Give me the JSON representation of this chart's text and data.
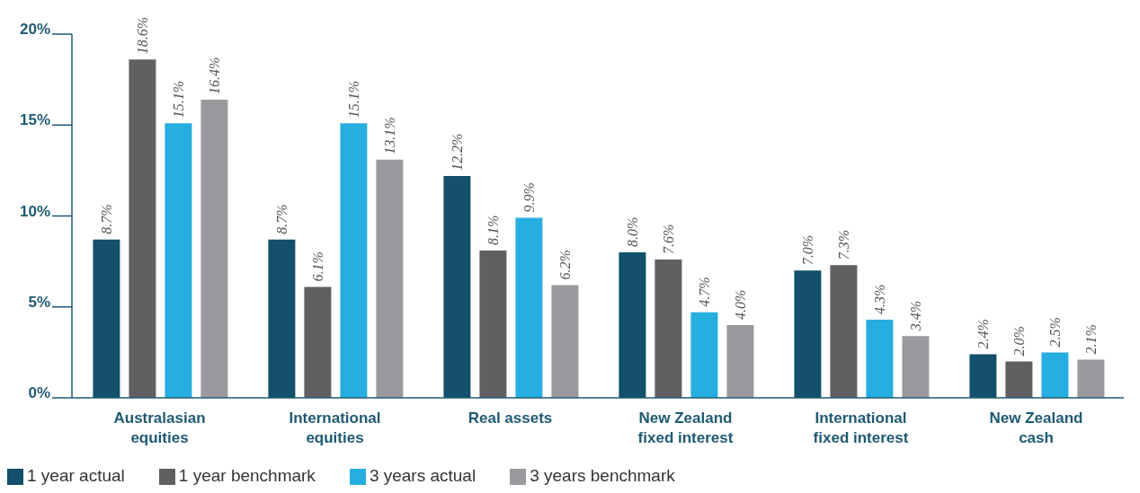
{
  "chart_data": {
    "type": "bar",
    "categories": [
      "Australasian equities",
      "International equities",
      "Real assets",
      "New Zealand fixed interest",
      "International fixed interest",
      "New Zealand cash"
    ],
    "series": [
      {
        "name": "1 year actual",
        "color": "#12506b",
        "values": [
          8.7,
          8.7,
          12.2,
          8.0,
          7.0,
          2.4
        ],
        "value_labels": [
          "8.7%",
          "8.7%",
          "12.2%",
          "8.0%",
          "7.0%",
          "2.4%"
        ]
      },
      {
        "name": "1 year benchmark",
        "color": "#606062",
        "values": [
          18.6,
          6.1,
          8.1,
          7.6,
          7.3,
          2.0
        ],
        "value_labels": [
          "18.6%",
          "6.1%",
          "8.1%",
          "7.6%",
          "7.3%",
          "2.0%"
        ]
      },
      {
        "name": "3 years actual",
        "color": "#27aee0",
        "values": [
          15.1,
          15.1,
          9.9,
          4.7,
          4.3,
          2.5
        ],
        "value_labels": [
          "15.1%",
          "15.1%",
          "9.9%",
          "4.7%",
          "4.3%",
          "2.5%"
        ]
      },
      {
        "name": "3 years benchmark",
        "color": "#9a9a9e",
        "values": [
          16.4,
          13.1,
          6.2,
          4.0,
          3.4,
          2.1
        ],
        "value_labels": [
          "16.4%",
          "13.1%",
          "6.2%",
          "4.0%",
          "3.4%",
          "2.1%"
        ]
      }
    ],
    "ylim": [
      0,
      20
    ],
    "yticks": [
      {
        "value": 0,
        "label": "0%"
      },
      {
        "value": 5,
        "label": "5%"
      },
      {
        "value": 10,
        "label": "10%"
      },
      {
        "value": 15,
        "label": "15%"
      },
      {
        "value": 20,
        "label": "20%"
      }
    ],
    "grid": false,
    "legend": "bottom left"
  }
}
